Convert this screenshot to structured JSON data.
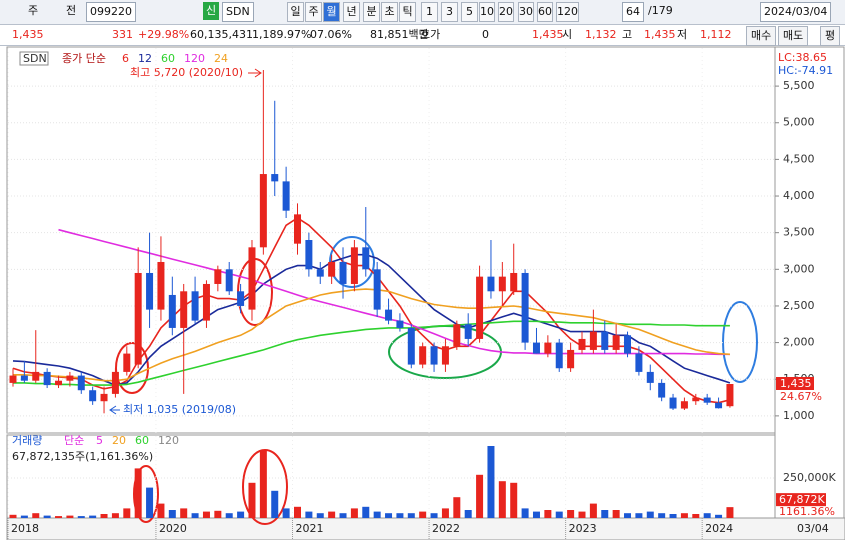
{
  "toolbar_row1": [
    "주",
    "전",
    "099220",
    "신",
    "SDN",
    "일",
    "주",
    "월",
    "년",
    "분",
    "초",
    "틱",
    "1",
    "3",
    "5",
    "10",
    "20",
    "30",
    "60",
    "120",
    "64",
    "/179",
    "2024/03/04"
  ],
  "toolbar_row2": [
    "1,435",
    "331",
    "+29.98%",
    "60,135,431",
    "1,189.97%",
    "07.06%",
    "81,851백만",
    "호가",
    "0",
    "1,435",
    "시",
    "1,132",
    "고",
    "1,435",
    "저",
    "1,112",
    "매수",
    "매도",
    "평"
  ],
  "chart_data": {
    "type": "candlestick",
    "legend_name": "SDN",
    "ma_label": "종가 단순",
    "categories": [
      "2018",
      null,
      null,
      null,
      null,
      null,
      null,
      null,
      null,
      null,
      null,
      null,
      null,
      "2020",
      null,
      null,
      null,
      null,
      null,
      null,
      null,
      null,
      null,
      null,
      null,
      "2021",
      null,
      null,
      null,
      null,
      null,
      null,
      null,
      null,
      null,
      null,
      null,
      "2022",
      null,
      null,
      null,
      null,
      null,
      null,
      null,
      null,
      null,
      null,
      null,
      "2023",
      null,
      null,
      null,
      null,
      null,
      null,
      null,
      null,
      null,
      null,
      null,
      "2024",
      null,
      null
    ],
    "right_date_label": "03/04",
    "open": [
      1450,
      1550,
      1480,
      1600,
      1420,
      1480,
      1550,
      1350,
      1200,
      1300,
      1600,
      1700,
      2950,
      2450,
      2650,
      2200,
      2700,
      2300,
      2800,
      3000,
      2700,
      2450,
      3300,
      4300,
      4200,
      3350,
      3400,
      3000,
      2900,
      3100,
      2800,
      3300,
      3000,
      2450,
      2300,
      2200,
      1700,
      1950,
      1700,
      1950,
      2250,
      2050,
      2900,
      2700,
      2700,
      2950,
      2000,
      1850,
      2000,
      1650,
      1900,
      1900,
      2150,
      1900,
      2100,
      1850,
      1600,
      1450,
      1250,
      1100,
      1200,
      1250,
      1180,
      1132
    ],
    "high": [
      1650,
      1750,
      2170,
      1650,
      1550,
      1600,
      1600,
      1400,
      1400,
      1650,
      1950,
      3300,
      3500,
      3450,
      2900,
      2800,
      2900,
      2850,
      3050,
      3100,
      2800,
      3400,
      5720,
      5300,
      4400,
      3900,
      3500,
      3100,
      3200,
      3300,
      3400,
      3850,
      3100,
      2600,
      2400,
      2250,
      2000,
      2000,
      2050,
      2300,
      2400,
      3050,
      3400,
      3100,
      3350,
      3000,
      2200,
      2100,
      2050,
      2000,
      2150,
      2450,
      2300,
      2250,
      2150,
      1950,
      1700,
      1500,
      1300,
      1250,
      1300,
      1300,
      1250,
      1435
    ],
    "low": [
      1400,
      1450,
      1450,
      1380,
      1380,
      1400,
      1300,
      1150,
      1035,
      1250,
      1550,
      1650,
      2200,
      2300,
      2100,
      1300,
      2250,
      2200,
      2700,
      2650,
      2400,
      2300,
      3200,
      4000,
      3700,
      3200,
      2900,
      2800,
      2800,
      2600,
      2700,
      2900,
      2350,
      2250,
      2150,
      1650,
      1650,
      1600,
      1600,
      1900,
      1950,
      2000,
      2600,
      2500,
      2650,
      1900,
      1850,
      1800,
      1600,
      1600,
      1850,
      1850,
      1850,
      1850,
      1800,
      1550,
      1350,
      1200,
      1080,
      1080,
      1150,
      1150,
      1100,
      1112
    ],
    "close": [
      1550,
      1480,
      1600,
      1420,
      1480,
      1550,
      1350,
      1200,
      1300,
      1600,
      1850,
      2950,
      2450,
      3100,
      2200,
      2700,
      2300,
      2800,
      3000,
      2700,
      2500,
      3300,
      4300,
      4200,
      3800,
      3750,
      3000,
      2900,
      3100,
      2800,
      3300,
      3000,
      2450,
      2300,
      2200,
      1700,
      1950,
      1700,
      1950,
      2250,
      2050,
      2900,
      2700,
      2900,
      2950,
      2000,
      1850,
      2000,
      1650,
      1900,
      2050,
      2150,
      1900,
      2100,
      1850,
      1600,
      1450,
      1250,
      1100,
      1200,
      1250,
      1180,
      1104,
      1435
    ],
    "up_color": "#e8251e",
    "down_color": "#1c58d4",
    "series": [
      {
        "name": "6",
        "color": "#e8251e",
        "values": [
          1650,
          1600,
          1580,
          1550,
          1530,
          1520,
          1500,
          1420,
          1370,
          1400,
          1480,
          1750,
          1950,
          2200,
          2350,
          2500,
          2600,
          2650,
          2600,
          2600,
          2580,
          2700,
          3000,
          3300,
          3600,
          3700,
          3600,
          3450,
          3300,
          3100,
          3050,
          3050,
          2900,
          2700,
          2500,
          2250,
          2100,
          1950,
          1900,
          1950,
          1950,
          2100,
          2300,
          2500,
          2700,
          2700,
          2550,
          2400,
          2200,
          2050,
          1950,
          1950,
          1950,
          1950,
          1950,
          1900,
          1800,
          1650,
          1500,
          1350,
          1250,
          1200,
          1180,
          1220
        ]
      },
      {
        "name": "12",
        "color": "#1a2a9a",
        "values": [
          1750,
          1740,
          1720,
          1700,
          1680,
          1650,
          1600,
          1550,
          1480,
          1420,
          1450,
          1600,
          1800,
          1950,
          2050,
          2150,
          2250,
          2350,
          2450,
          2500,
          2550,
          2650,
          2800,
          2900,
          3000,
          3050,
          3050,
          3000,
          3100,
          3150,
          3200,
          3200,
          3150,
          3050,
          2900,
          2750,
          2600,
          2450,
          2350,
          2250,
          2200,
          2250,
          2300,
          2350,
          2400,
          2350,
          2300,
          2250,
          2200,
          2150,
          2150,
          2150,
          2150,
          2100,
          2100,
          2000,
          1950,
          1850,
          1750,
          1650,
          1600,
          1550,
          1500,
          1450
        ]
      },
      {
        "name": "60",
        "color": "#2ed12e",
        "values": [
          1450,
          1450,
          1440,
          1440,
          1430,
          1430,
          1420,
          1420,
          1420,
          1420,
          1430,
          1460,
          1500,
          1540,
          1580,
          1620,
          1660,
          1700,
          1740,
          1780,
          1820,
          1860,
          1900,
          1950,
          2000,
          2040,
          2070,
          2100,
          2120,
          2140,
          2160,
          2180,
          2190,
          2200,
          2200,
          2200,
          2210,
          2220,
          2230,
          2240,
          2250,
          2260,
          2270,
          2280,
          2290,
          2290,
          2290,
          2280,
          2280,
          2270,
          2270,
          2270,
          2260,
          2260,
          2250,
          2250,
          2250,
          2240,
          2240,
          2240,
          2230,
          2230,
          2230,
          2230
        ]
      },
      {
        "name": "120",
        "color": "#e02ce0",
        "values": [
          null,
          null,
          null,
          null,
          3540,
          3500,
          3460,
          3420,
          3380,
          3340,
          3300,
          3260,
          3220,
          3180,
          3140,
          3100,
          3060,
          3020,
          2980,
          2940,
          2900,
          2860,
          2800,
          2750,
          2700,
          2650,
          2600,
          2560,
          2520,
          2480,
          2440,
          2400,
          2360,
          2320,
          2290,
          2240,
          2180,
          2120,
          2060,
          2000,
          1960,
          1920,
          1890,
          1870,
          1860,
          1860,
          1850,
          1850,
          1850,
          1850,
          1850,
          1850,
          1850,
          1850,
          1850,
          1850,
          1850,
          1850,
          1850,
          1850,
          1845,
          1845,
          1840,
          1840
        ]
      },
      {
        "name": "24",
        "color": "#f0a020",
        "values": [
          1560,
          1560,
          1550,
          1550,
          1540,
          1530,
          1520,
          1500,
          1480,
          1480,
          1500,
          1580,
          1650,
          1720,
          1780,
          1830,
          1880,
          1940,
          2000,
          2050,
          2100,
          2180,
          2300,
          2400,
          2500,
          2550,
          2600,
          2650,
          2680,
          2700,
          2720,
          2730,
          2720,
          2700,
          2650,
          2600,
          2560,
          2520,
          2500,
          2480,
          2470,
          2470,
          2480,
          2490,
          2500,
          2480,
          2450,
          2420,
          2400,
          2380,
          2360,
          2340,
          2300,
          2260,
          2220,
          2180,
          2120,
          2060,
          2000,
          1950,
          1900,
          1870,
          1850,
          1840
        ]
      }
    ],
    "ylim": [
      780,
      6020
    ],
    "yticks": [
      {
        "value": 1000,
        "label": "1,000"
      },
      {
        "value": 1500,
        "label": "1,500"
      },
      {
        "value": 2000,
        "label": "2,000"
      },
      {
        "value": 2500,
        "label": "2,500"
      },
      {
        "value": 3000,
        "label": "3,000"
      },
      {
        "value": 3500,
        "label": "3,500"
      },
      {
        "value": 4000,
        "label": "4,000"
      },
      {
        "value": 4500,
        "label": "4,500"
      },
      {
        "value": 5000,
        "label": "5,000"
      },
      {
        "value": 5500,
        "label": "5,500"
      }
    ],
    "grid": true,
    "lc_label": "LC:38.65",
    "hc_label": "HC:-74.91",
    "last_price_label": "1,435",
    "last_change_label": "24.67%",
    "high_annotation": "최고 5,720 (2020/10)",
    "low_annotation": "최저 1,035 (2019/08)",
    "volume": {
      "label": "거래량",
      "ma_label": "단순",
      "ma_names": [
        "5",
        "20",
        "60",
        "120"
      ],
      "ma_colors": [
        "#e02ce0",
        "#f0a020",
        "#2ed12e",
        "#888888"
      ],
      "summary": "67,872,135주(1,161.36%)",
      "values": [
        20000,
        15000,
        30000,
        15000,
        12000,
        15000,
        12000,
        15000,
        25000,
        30000,
        60000,
        310000,
        190000,
        90000,
        50000,
        60000,
        30000,
        40000,
        45000,
        30000,
        40000,
        220000,
        420000,
        170000,
        60000,
        70000,
        40000,
        30000,
        40000,
        30000,
        60000,
        70000,
        40000,
        30000,
        30000,
        30000,
        40000,
        30000,
        60000,
        130000,
        50000,
        270000,
        450000,
        230000,
        220000,
        60000,
        40000,
        50000,
        40000,
        50000,
        40000,
        90000,
        50000,
        50000,
        30000,
        30000,
        40000,
        30000,
        25000,
        30000,
        25000,
        30000,
        20000,
        67872
      ],
      "last_value_label": "67,872K",
      "ratio_label": "1161.36%",
      "ylim": [
        0,
        500000
      ],
      "yticks": [
        {
          "value": 250000,
          "label": "250,000K"
        }
      ]
    }
  }
}
